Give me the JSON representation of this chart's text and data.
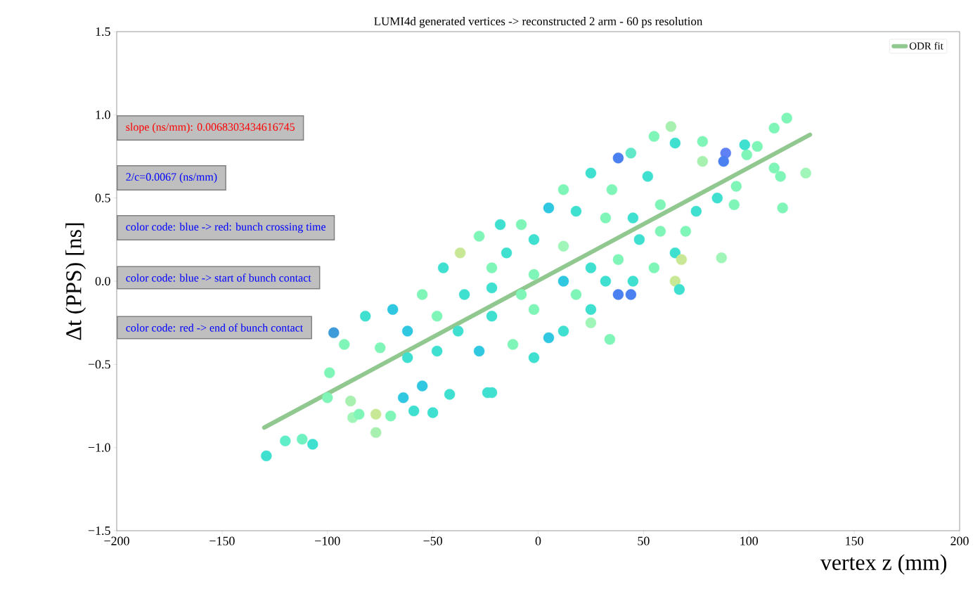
{
  "chart_data": {
    "type": "scatter",
    "title": "LUMI4d generated vertices -> reconstructed 2 arm - 60 ps resolution",
    "xlabel": "vertex z  (mm)",
    "ylabel": "Δt (PPS) [ns]",
    "xlim": [
      -200,
      200
    ],
    "ylim": [
      -1.5,
      1.5
    ],
    "xticks": [
      {
        "value": -200,
        "label": "−200"
      },
      {
        "value": -150,
        "label": "−150"
      },
      {
        "value": -100,
        "label": "−100"
      },
      {
        "value": -50,
        "label": "−50"
      },
      0,
      50,
      100,
      150,
      200
    ],
    "yticks": [
      {
        "value": -1.5,
        "label": "−1.5"
      },
      {
        "value": -1.0,
        "label": "−1.0"
      },
      {
        "value": -0.5,
        "label": "−0.5"
      },
      {
        "value": 0,
        "label": "0.0"
      },
      {
        "value": 0.5,
        "label": "0.5"
      },
      {
        "value": 1.0,
        "label": "1.0"
      },
      {
        "value": 1.5,
        "label": "1.5"
      }
    ],
    "legend": "top right",
    "grid": false,
    "annotations": [
      "slope (ns/mm):  0.0068303434616745",
      "2/c=0.0067 (ns/mm)",
      "color code: blue ->  red:  bunch crossing time",
      "color code: blue -> start of bunch contact",
      "color code: red  ->  end  of bunch contact"
    ],
    "series": [
      {
        "marker": "circle",
        "x": [
          -129,
          -120,
          -112,
          -107,
          -100,
          -99,
          -97,
          -89,
          -88,
          -85,
          -77,
          -77,
          -70,
          -64,
          -59,
          -50,
          -42,
          -24,
          -22,
          -55,
          -62,
          -75,
          -92,
          -82,
          -69,
          -55,
          -45,
          -37,
          -28,
          -18,
          -8,
          -22,
          -38,
          -28,
          -12,
          -2,
          5,
          12,
          25,
          34,
          38,
          45,
          55,
          65,
          70,
          75,
          68,
          65,
          67,
          87,
          85,
          93,
          94,
          99,
          98,
          104,
          112,
          118,
          112,
          115,
          127,
          116,
          89,
          78,
          63,
          55,
          65,
          38,
          44,
          25,
          12,
          5,
          18,
          32,
          45,
          58,
          -2,
          12,
          25,
          -2,
          -15,
          -8,
          -22,
          -48,
          -62,
          -48,
          18,
          32,
          38,
          48,
          58,
          12,
          -2,
          25,
          -22,
          -35,
          52,
          35,
          78,
          44,
          88
        ],
        "values": [
          -1.05,
          -0.96,
          -0.95,
          -0.98,
          -0.7,
          -0.55,
          -0.31,
          -0.72,
          -0.82,
          -0.8,
          -0.8,
          -0.91,
          -0.81,
          -0.7,
          -0.78,
          -0.79,
          -0.68,
          -0.67,
          -0.67,
          -0.63,
          -0.46,
          -0.4,
          -0.38,
          -0.21,
          -0.17,
          -0.08,
          0.08,
          0.17,
          0.27,
          0.34,
          0.34,
          -0.04,
          -0.3,
          -0.42,
          -0.38,
          -0.46,
          -0.34,
          -0.3,
          -0.25,
          -0.35,
          -0.08,
          0.0,
          0.08,
          0.17,
          0.3,
          0.42,
          0.13,
          0.0,
          -0.05,
          0.14,
          0.5,
          0.46,
          0.57,
          0.76,
          0.82,
          0.81,
          0.92,
          0.98,
          0.68,
          0.63,
          0.65,
          0.44,
          0.77,
          0.84,
          0.93,
          0.87,
          0.83,
          0.74,
          0.77,
          0.65,
          0.55,
          0.44,
          0.42,
          0.38,
          0.38,
          0.46,
          0.25,
          0.21,
          0.08,
          0.04,
          0.17,
          -0.08,
          -0.21,
          -0.21,
          -0.3,
          -0.42,
          -0.08,
          0.0,
          0.13,
          0.25,
          0.3,
          0.0,
          -0.17,
          -0.17,
          0.08,
          -0.08,
          0.63,
          0.55,
          0.72,
          -0.08,
          0.72
        ],
        "colors": [
          "#40e0d0",
          "#60eec8",
          "#70f2c0",
          "#40e0d0",
          "#80f5b8",
          "#80f5b8",
          "#3c9bd8",
          "#a8f0b0",
          "#a0f5b8",
          "#80f5b8",
          "#c8e896",
          "#a8f0b0",
          "#80f5b8",
          "#30c8e0",
          "#40e0d0",
          "#40e0d0",
          "#40e0d0",
          "#40e0d0",
          "#40e0d0",
          "#30c8e0",
          "#40e0d0",
          "#80f5b8",
          "#80f5b8",
          "#40e0d0",
          "#30c8e0",
          "#80f5b8",
          "#40e0d0",
          "#c8e896",
          "#80f5b8",
          "#40e0d0",
          "#80f5b8",
          "#40e0d0",
          "#40e0d0",
          "#30c8e0",
          "#80f5b8",
          "#40e0d0",
          "#30c8e0",
          "#40e0d0",
          "#a0f5b8",
          "#80f5b8",
          "#4a80f0",
          "#40e0d0",
          "#80f5b8",
          "#40e0d0",
          "#80f5b8",
          "#40e0d0",
          "#c8e896",
          "#c8e896",
          "#40e0d0",
          "#a0f5b8",
          "#40e0d0",
          "#80f5b8",
          "#80f5b8",
          "#80f5b8",
          "#40e0d0",
          "#80f5b8",
          "#80f5b8",
          "#80f5b8",
          "#80f5b8",
          "#80f5b8",
          "#a0f5b8",
          "#80f5b8",
          "#6080f5",
          "#80f5b8",
          "#a8f0b0",
          "#80f5b8",
          "#40e0d0",
          "#4a80f0",
          "#60e8c8",
          "#40e0d0",
          "#80f5b8",
          "#30c8e0",
          "#40e0d0",
          "#80f5b8",
          "#40e0d0",
          "#80f5b8",
          "#40e0d0",
          "#a0f5b8",
          "#40e0d0",
          "#80f5b8",
          "#40e0d0",
          "#80f5b8",
          "#40e0d0",
          "#80f5b8",
          "#30c8e0",
          "#40e0d0",
          "#80f5b8",
          "#40e0d0",
          "#80f5b8",
          "#40e0d0",
          "#80f5b8",
          "#30c8e0",
          "#80f5b8",
          "#40e0d0",
          "#80f5b8",
          "#40e0d0",
          "#40e0d0",
          "#80f5b8",
          "#a8f0b0",
          "#4a80f0",
          "#4a80f0"
        ]
      },
      {
        "type": "line",
        "name": "ODR fit",
        "marker": "none",
        "color": "#90c890",
        "x": [
          -130,
          129
        ],
        "values": [
          -0.88,
          0.88
        ]
      }
    ]
  }
}
